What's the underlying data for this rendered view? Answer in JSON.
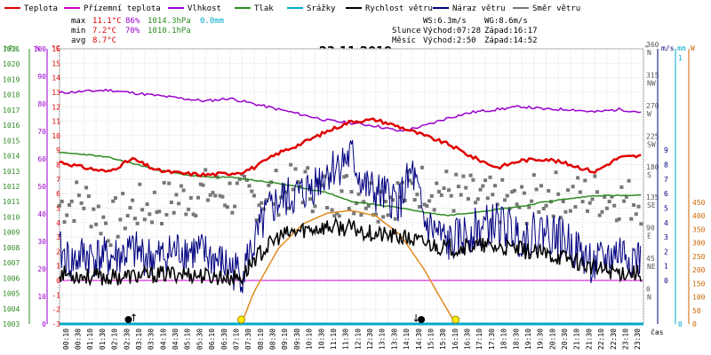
{
  "chart_data": {
    "type": "line",
    "title": "23.11.2019",
    "x_label": "čas",
    "x_ticks": [
      "00:10",
      "00:30",
      "01:10",
      "01:30",
      "02:10",
      "02:30",
      "03:10",
      "03:30",
      "04:10",
      "04:30",
      "05:10",
      "05:30",
      "06:10",
      "06:30",
      "07:10",
      "07:30",
      "08:10",
      "08:30",
      "09:10",
      "09:30",
      "10:10",
      "10:30",
      "11:10",
      "11:30",
      "12:10",
      "12:30",
      "13:10",
      "13:30",
      "14:10",
      "14:30",
      "15:10",
      "15:30",
      "16:10",
      "16:30",
      "17:10",
      "17:30",
      "18:10",
      "18:30",
      "19:10",
      "19:30",
      "20:10",
      "20:30",
      "21:10",
      "21:30",
      "22:10",
      "22:30",
      "23:10",
      "23:30"
    ],
    "legend": [
      {
        "name": "Teplota",
        "color": "#e00000"
      },
      {
        "name": "Přízemní teplota",
        "color": "#cc00cc"
      },
      {
        "name": "Vlhkost",
        "color": "#9900cc"
      },
      {
        "name": "Tlak",
        "color": "#2e8b22"
      },
      {
        "name": "Srážky",
        "color": "#00aacc"
      },
      {
        "name": "Rychlost větru",
        "color": "#000000"
      },
      {
        "name": "Náraz větru",
        "color": "#000080"
      },
      {
        "name": "Směr větru",
        "color": "#777777"
      }
    ],
    "stats": {
      "max": {
        "label": "max",
        "temp": "11.1°C",
        "hum": "86%",
        "press": "1014.3hPa",
        "rain": "0.0mm"
      },
      "min": {
        "label": "min",
        "temp": "7.2°C",
        "hum": "70%",
        "press": "1010.1hPa"
      },
      "avg": {
        "label": "avg",
        "temp": "8.7°C"
      }
    },
    "info": {
      "ws": "WS:6.3m/s",
      "wg": "WG:8.6m/s",
      "sun_label": "Slunce",
      "sunrise": "Východ:07:28",
      "sunset": "Západ:16:17",
      "moon_label": "Měsíc",
      "moonrise": "Východ:2:50",
      "moonset": "Západ:14:52"
    },
    "axes": {
      "hpa": {
        "unit": "hPa",
        "range": [
          1003,
          1021
        ],
        "ticks": [
          1003,
          1004,
          1005,
          1006,
          1007,
          1008,
          1009,
          1010,
          1011,
          1012,
          1013,
          1014,
          1015,
          1016,
          1017,
          1018,
          1019,
          1020,
          1021
        ]
      },
      "pct": {
        "unit": "%",
        "range": [
          0,
          100
        ],
        "ticks": [
          0,
          10,
          20,
          30,
          40,
          50,
          60,
          70,
          80,
          90,
          100
        ]
      },
      "temp": {
        "unit": "°C",
        "range": [
          -3,
          16
        ],
        "ticks": [
          -3,
          -2,
          -1,
          0,
          1,
          2,
          3,
          4,
          5,
          6,
          7,
          8,
          9,
          10,
          11,
          12,
          13,
          14,
          15,
          16
        ]
      },
      "dir": {
        "unit": "°",
        "ticks": [
          {
            "v": 0,
            "c": "N"
          },
          {
            "v": 45,
            "c": "NE"
          },
          {
            "v": 90,
            "c": "E"
          },
          {
            "v": 135,
            "c": "SE"
          },
          {
            "v": 180,
            "c": "S"
          },
          {
            "v": 225,
            "c": "SW"
          },
          {
            "v": 270,
            "c": "W"
          },
          {
            "v": 315,
            "c": "NW"
          },
          {
            "v": 360,
            "c": "N"
          }
        ]
      },
      "ms": {
        "unit": "m/s",
        "ticks": [
          0,
          1,
          2,
          3,
          4,
          5,
          6,
          7,
          8,
          9
        ]
      },
      "mm": {
        "unit": "mm",
        "ticks": [
          0,
          1
        ]
      },
      "w": {
        "unit": "W",
        "ticks": [
          0,
          50,
          100,
          150,
          200,
          250,
          300,
          350,
          400,
          450
        ]
      }
    },
    "series": [
      {
        "name": "Teplota",
        "unit": "°C",
        "hours": [
          0,
          1,
          2,
          3,
          4,
          5,
          6,
          7,
          7.5,
          8,
          9,
          10,
          11,
          12,
          13,
          14,
          15,
          16,
          17,
          18,
          19,
          20,
          21,
          22,
          23,
          23.9
        ],
        "values": [
          8.2,
          7.8,
          7.5,
          8.4,
          7.6,
          7.4,
          7.3,
          7.4,
          7.5,
          7.8,
          8.8,
          9.5,
          10.3,
          11.0,
          11.1,
          10.6,
          10.0,
          9.4,
          8.5,
          7.8,
          8.3,
          8.4,
          8.0,
          7.5,
          8.5,
          8.6
        ]
      },
      {
        "name": "Vlhkost",
        "unit": "%",
        "hours": [
          0,
          2,
          3,
          4,
          5,
          6,
          7,
          8,
          9,
          10,
          11,
          12,
          13,
          14,
          15,
          16,
          17,
          18,
          19,
          20,
          21,
          22,
          23,
          23.9
        ],
        "values": [
          84,
          85,
          84,
          83,
          82,
          81,
          82,
          80,
          78,
          76,
          74,
          73,
          72,
          70,
          72,
          75,
          77,
          78,
          79,
          78,
          78,
          77,
          78,
          77
        ]
      },
      {
        "name": "Tlak",
        "unit": "hPa",
        "hours": [
          0,
          1,
          2,
          3,
          4,
          5,
          6,
          7,
          8,
          9,
          10,
          11,
          12,
          13,
          14,
          15,
          16,
          17,
          18,
          19,
          20,
          21,
          22,
          23,
          23.9
        ],
        "values": [
          1014.2,
          1014.1,
          1013.9,
          1013.5,
          1013.1,
          1012.8,
          1012.6,
          1012.6,
          1012.4,
          1012.2,
          1011.9,
          1011.6,
          1011.0,
          1010.8,
          1010.6,
          1010.3,
          1010.1,
          1010.3,
          1010.5,
          1010.7,
          1011.0,
          1011.2,
          1011.4,
          1011.4,
          1011.4
        ]
      },
      {
        "name": "Rychlost větru",
        "unit": "m/s",
        "hours": [
          0,
          1,
          2,
          3,
          4,
          5,
          6,
          7,
          7.5,
          8,
          9,
          10,
          11,
          12,
          13,
          14,
          15,
          16,
          17,
          18,
          19,
          20,
          21,
          22,
          23,
          23.9
        ],
        "values": [
          0.5,
          0.3,
          0.2,
          0.3,
          0.4,
          0.5,
          0.3,
          0.2,
          0.2,
          1.5,
          3.0,
          3.5,
          3.7,
          3.6,
          3.2,
          3.0,
          2.6,
          2.2,
          2.4,
          2.3,
          2.1,
          1.8,
          1.5,
          0.8,
          0.6,
          0.5
        ]
      },
      {
        "name": "Náraz větru",
        "unit": "m/s",
        "hours": [
          0,
          0.5,
          1,
          2,
          3,
          4,
          5,
          6,
          7,
          7.5,
          8,
          8.5,
          9,
          10,
          11,
          12,
          12.5,
          13,
          14,
          14.5,
          15,
          16,
          17,
          18,
          19,
          20,
          21,
          22,
          23,
          23.9
        ],
        "values": [
          2.0,
          1.2,
          1.8,
          1.5,
          2.0,
          1.5,
          2.2,
          1.8,
          0.8,
          0.5,
          2.5,
          4.5,
          5.5,
          6.0,
          7.5,
          8.6,
          6.5,
          6.0,
          5.5,
          7.5,
          4.0,
          2.5,
          3.5,
          4.0,
          3.0,
          3.5,
          2.5,
          1.0,
          2.0,
          1.5
        ]
      },
      {
        "name": "Směr větru",
        "unit": "°",
        "hours": [
          0,
          1,
          2,
          3,
          4,
          5,
          6,
          7,
          8,
          9,
          10,
          11,
          12,
          13,
          14,
          15,
          16,
          17,
          18,
          19,
          20,
          21,
          22,
          23,
          23.9
        ],
        "values": [
          130,
          140,
          100,
          125,
          130,
          140,
          150,
          145,
          140,
          150,
          160,
          145,
          150,
          140,
          145,
          160,
          150,
          140,
          135,
          130,
          150,
          140,
          145,
          140,
          135
        ]
      },
      {
        "name": "Sluneční záření",
        "unit": "W",
        "hours": [
          7.47,
          8,
          9,
          10,
          11,
          12,
          13,
          14,
          15,
          15.5,
          16.28
        ],
        "values": [
          0,
          120,
          280,
          370,
          410,
          420,
          400,
          330,
          200,
          120,
          0
        ]
      }
    ],
    "markers": [
      {
        "type": "sunrise",
        "hour": 7.47
      },
      {
        "type": "sunset",
        "hour": 16.28
      },
      {
        "type": "moonrise",
        "hour": 2.83
      },
      {
        "type": "moonset",
        "hour": 14.87
      }
    ]
  }
}
